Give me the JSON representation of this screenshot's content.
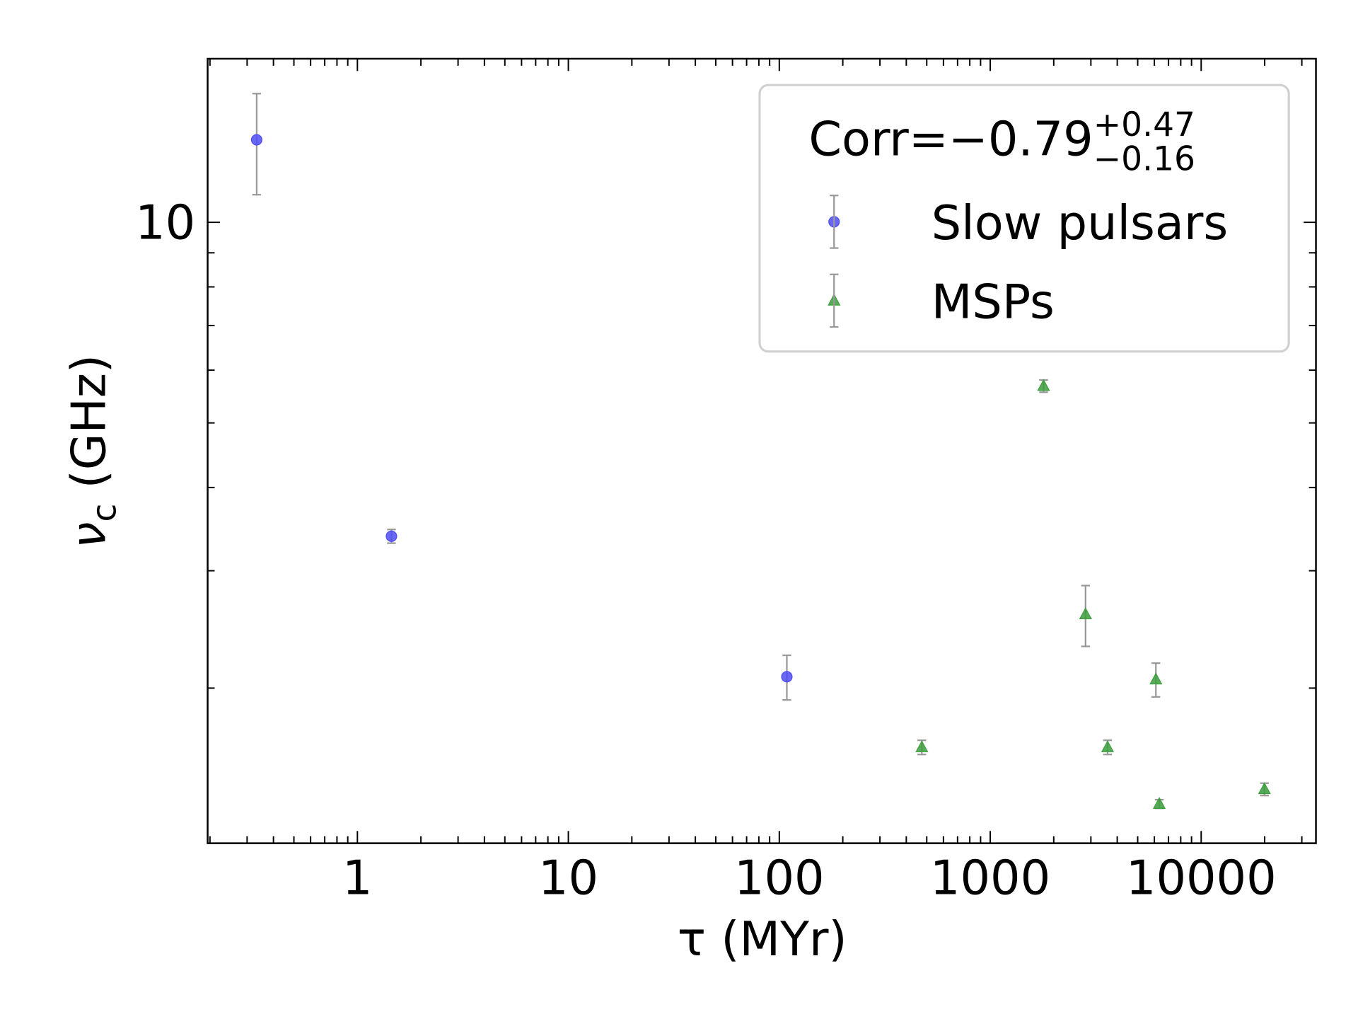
{
  "chart_data": {
    "type": "scatter",
    "xlabel": "τ (MYr)",
    "ylabel_symbol": "ν",
    "ylabel_sub": "c",
    "ylabel_unit": " (GHz)",
    "xscale": "log",
    "yscale": "log",
    "xlim": [
      0.195,
      35000
    ],
    "ylim": [
      1.17,
      17.6
    ],
    "xticks": [
      1,
      10,
      100,
      1000,
      10000
    ],
    "yticks": [
      10
    ],
    "minor_ticks": true,
    "legend": {
      "title": "Corr=−0.79",
      "title_sup": "+0.47",
      "title_sub": "−0.16",
      "loc": "upper right"
    },
    "errorbar_color": "#999999",
    "series": [
      {
        "name": "Slow pulsars",
        "marker": "circle",
        "color": "#4d4df2",
        "x": [
          0.333,
          1.45,
          108.6
        ],
        "values": [
          13.3,
          3.38,
          2.08
        ],
        "errors": [
          2.3,
          0.08,
          0.16
        ]
      },
      {
        "name": "MSPs",
        "marker": "triangle",
        "color": "#3c9e3c",
        "x": [
          1790,
          2830,
          6100,
          474,
          3600,
          6330,
          19950
        ],
        "values": [
          5.68,
          2.58,
          2.06,
          1.63,
          1.63,
          1.34,
          1.41
        ],
        "errors": [
          0.12,
          0.27,
          0.12,
          0.04,
          0.04,
          0.02,
          0.03
        ]
      }
    ]
  }
}
